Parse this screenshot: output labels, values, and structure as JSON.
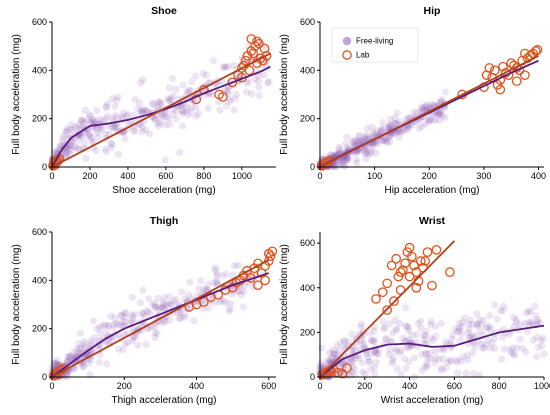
{
  "colors": {
    "free_living": "#8f5bb3",
    "lab": "#e0541c",
    "free_living_line": "#5a1c7a",
    "lab_line": "#b0401a"
  },
  "legend": {
    "free_living": "Free-living",
    "lab": "Lab"
  },
  "chart_data": [
    {
      "type": "scatter",
      "title": "Shoe",
      "xlabel": "Shoe acceleration (mg)",
      "ylabel": "Full body acceleration (mg)",
      "xlim": [
        0,
        1180
      ],
      "ylim": [
        0,
        600
      ],
      "xticks": [
        0,
        200,
        400,
        600,
        800,
        1000
      ],
      "yticks": [
        0,
        200,
        400,
        600
      ],
      "series": [
        {
          "name": "Free-living",
          "kind": "cloud",
          "cloud_x": [
            0,
            1150
          ],
          "fit_x": [
            0,
            50,
            100,
            200,
            300,
            400,
            500,
            600,
            700,
            800,
            900,
            1000,
            1100,
            1150
          ],
          "fit_y": [
            0,
            70,
            120,
            170,
            180,
            195,
            215,
            240,
            270,
            305,
            335,
            365,
            395,
            415
          ],
          "spread": 50
        },
        {
          "name": "Lab",
          "kind": "circles",
          "x": [
            5,
            10,
            15,
            20,
            25,
            30,
            40,
            760,
            800,
            880,
            900,
            950,
            980,
            1000,
            1010,
            1020,
            1030,
            1040,
            1050,
            1060,
            1070,
            1080,
            1090,
            1100,
            1110,
            1120,
            1130,
            1000,
            1050,
            1080
          ],
          "y": [
            5,
            15,
            10,
            25,
            20,
            30,
            35,
            280,
            320,
            300,
            290,
            350,
            380,
            410,
            420,
            440,
            460,
            400,
            480,
            470,
            500,
            430,
            510,
            450,
            440,
            490,
            460,
            370,
            530,
            520
          ],
          "fit_x": [
            0,
            1150
          ],
          "fit_y": [
            0,
            470
          ]
        }
      ]
    },
    {
      "type": "scatter",
      "title": "Hip",
      "xlabel": "Hip acceleration (mg)",
      "ylabel": "Full body acceleration (mg)",
      "xlim": [
        0,
        410
      ],
      "ylim": [
        0,
        600
      ],
      "xticks": [
        0,
        100,
        200,
        300,
        400
      ],
      "yticks": [
        0,
        200,
        400,
        600
      ],
      "series": [
        {
          "name": "Free-living",
          "kind": "cloud",
          "cloud_x": [
            0,
            230
          ],
          "fit_x": [
            0,
            50,
            100,
            150,
            200,
            250,
            300,
            350,
            400
          ],
          "fit_y": [
            0,
            60,
            115,
            170,
            225,
            280,
            335,
            390,
            440
          ],
          "spread": 25
        },
        {
          "name": "Lab",
          "kind": "circles",
          "x": [
            3,
            6,
            10,
            14,
            18,
            260,
            300,
            305,
            310,
            315,
            320,
            325,
            330,
            335,
            340,
            345,
            350,
            355,
            360,
            365,
            370,
            375,
            380,
            385,
            390,
            395,
            398,
            330,
            360,
            375
          ],
          "y": [
            5,
            12,
            18,
            22,
            28,
            300,
            330,
            380,
            410,
            370,
            400,
            340,
            360,
            415,
            390,
            380,
            430,
            420,
            410,
            400,
            440,
            380,
            450,
            460,
            470,
            480,
            485,
            320,
            355,
            470
          ],
          "fit_x": [
            0,
            400
          ],
          "fit_y": [
            0,
            460
          ]
        }
      ]
    },
    {
      "type": "scatter",
      "title": "Thigh",
      "xlabel": "Thigh acceleration (mg)",
      "ylabel": "Full body acceleration (mg)",
      "xlim": [
        0,
        620
      ],
      "ylim": [
        0,
        600
      ],
      "xticks": [
        0,
        200,
        400,
        600
      ],
      "yticks": [
        0,
        200,
        400,
        600
      ],
      "series": [
        {
          "name": "Free-living",
          "kind": "cloud",
          "cloud_x": [
            0,
            580
          ],
          "fit_x": [
            0,
            50,
            100,
            150,
            200,
            300,
            400,
            500,
            600
          ],
          "fit_y": [
            0,
            55,
            110,
            160,
            200,
            260,
            320,
            380,
            430
          ],
          "spread": 40
        },
        {
          "name": "Lab",
          "kind": "circles",
          "x": [
            5,
            10,
            15,
            20,
            25,
            30,
            380,
            400,
            420,
            440,
            460,
            480,
            500,
            510,
            520,
            530,
            540,
            550,
            560,
            570,
            580,
            590,
            600,
            605,
            610,
            570,
            590,
            600
          ],
          "y": [
            5,
            15,
            10,
            25,
            30,
            35,
            290,
            300,
            310,
            330,
            340,
            360,
            370,
            390,
            400,
            420,
            440,
            410,
            450,
            470,
            430,
            460,
            480,
            500,
            520,
            380,
            400,
            510
          ],
          "fit_x": [
            0,
            600
          ],
          "fit_y": [
            0,
            485
          ]
        }
      ]
    },
    {
      "type": "scatter",
      "title": "Wrist",
      "xlabel": "Wrist acceleration (mg)",
      "ylabel": "Full body acceleration (mg)",
      "xlim": [
        0,
        1000
      ],
      "ylim": [
        0,
        650
      ],
      "xticks": [
        0,
        200,
        400,
        600,
        800,
        1000
      ],
      "yticks": [
        0,
        200,
        400,
        600
      ],
      "series": [
        {
          "name": "Free-living",
          "kind": "cloud",
          "cloud_x": [
            0,
            1000
          ],
          "fit_x": [
            0,
            50,
            100,
            200,
            300,
            400,
            500,
            600,
            700,
            800,
            900,
            1000
          ],
          "fit_y": [
            0,
            40,
            80,
            120,
            145,
            150,
            135,
            140,
            170,
            200,
            215,
            230
          ],
          "spread": 70
        },
        {
          "name": "Lab",
          "kind": "circles",
          "x": [
            10,
            20,
            30,
            40,
            50,
            60,
            80,
            100,
            120,
            250,
            280,
            300,
            320,
            340,
            350,
            360,
            370,
            380,
            390,
            400,
            410,
            420,
            430,
            440,
            450,
            460,
            480,
            500,
            520,
            580,
            300,
            330,
            360,
            400,
            430,
            470
          ],
          "y": [
            10,
            15,
            20,
            30,
            25,
            35,
            20,
            15,
            40,
            350,
            380,
            420,
            500,
            530,
            450,
            470,
            480,
            510,
            560,
            580,
            540,
            500,
            470,
            430,
            520,
            490,
            560,
            410,
            570,
            470,
            300,
            340,
            390,
            450,
            400,
            520
          ],
          "fit_x": [
            0,
            600
          ],
          "fit_y": [
            0,
            610
          ]
        }
      ]
    }
  ]
}
